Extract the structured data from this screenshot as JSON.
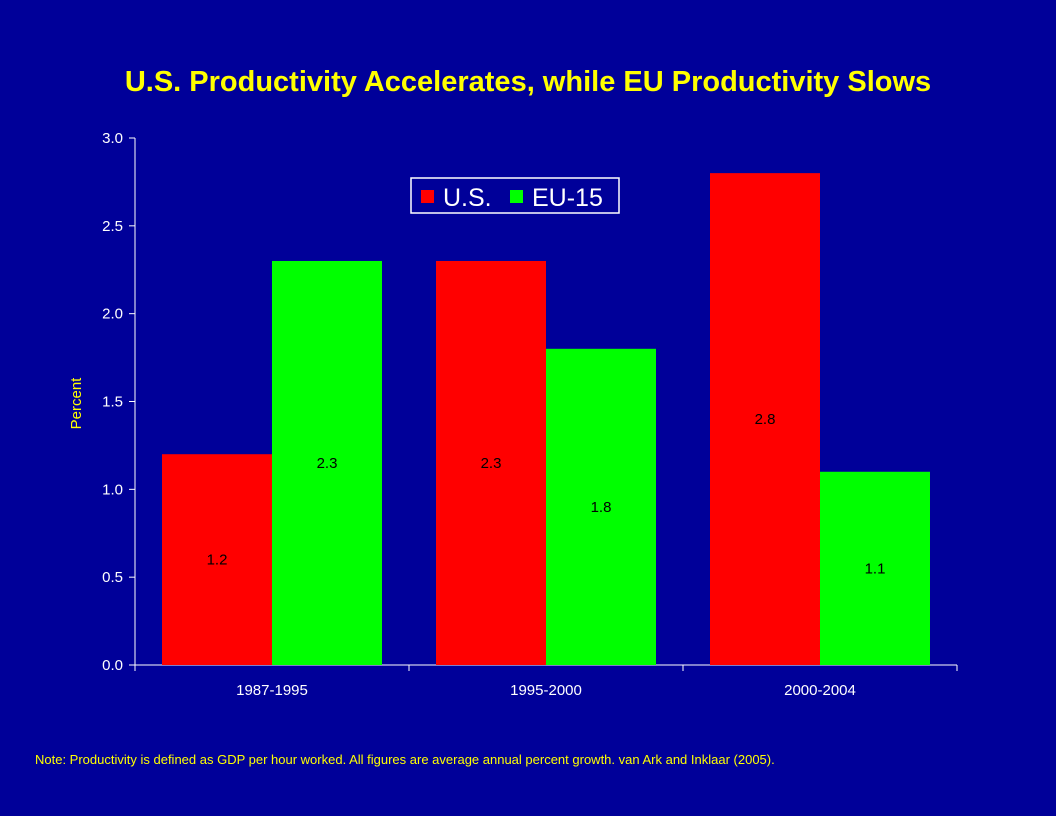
{
  "chart_data": {
    "type": "bar",
    "title": "U.S. Productivity Accelerates, while EU Productivity Slows",
    "ylabel": "Percent",
    "xlabel": "",
    "categories": [
      "1987-1995",
      "1995-2000",
      "2000-2004"
    ],
    "series": [
      {
        "name": "U.S.",
        "values": [
          1.2,
          2.3,
          2.8
        ],
        "color": "#ff0000"
      },
      {
        "name": "EU-15",
        "values": [
          2.3,
          1.8,
          1.1
        ],
        "color": "#00ff00"
      }
    ],
    "ylim": [
      0,
      3.0
    ],
    "yticks": [
      "0.0",
      "0.5",
      "1.0",
      "1.5",
      "2.0",
      "2.5",
      "3.0"
    ],
    "data_labels": [
      [
        "1.2",
        "2.3",
        "2.8"
      ],
      [
        "2.3",
        "1.8",
        "1.1"
      ]
    ],
    "legend_position": "top-center",
    "grid": false
  },
  "note": "Note: Productivity is defined as GDP per hour worked.  All figures are average annual percent growth. van Ark and Inklaar (2005)."
}
